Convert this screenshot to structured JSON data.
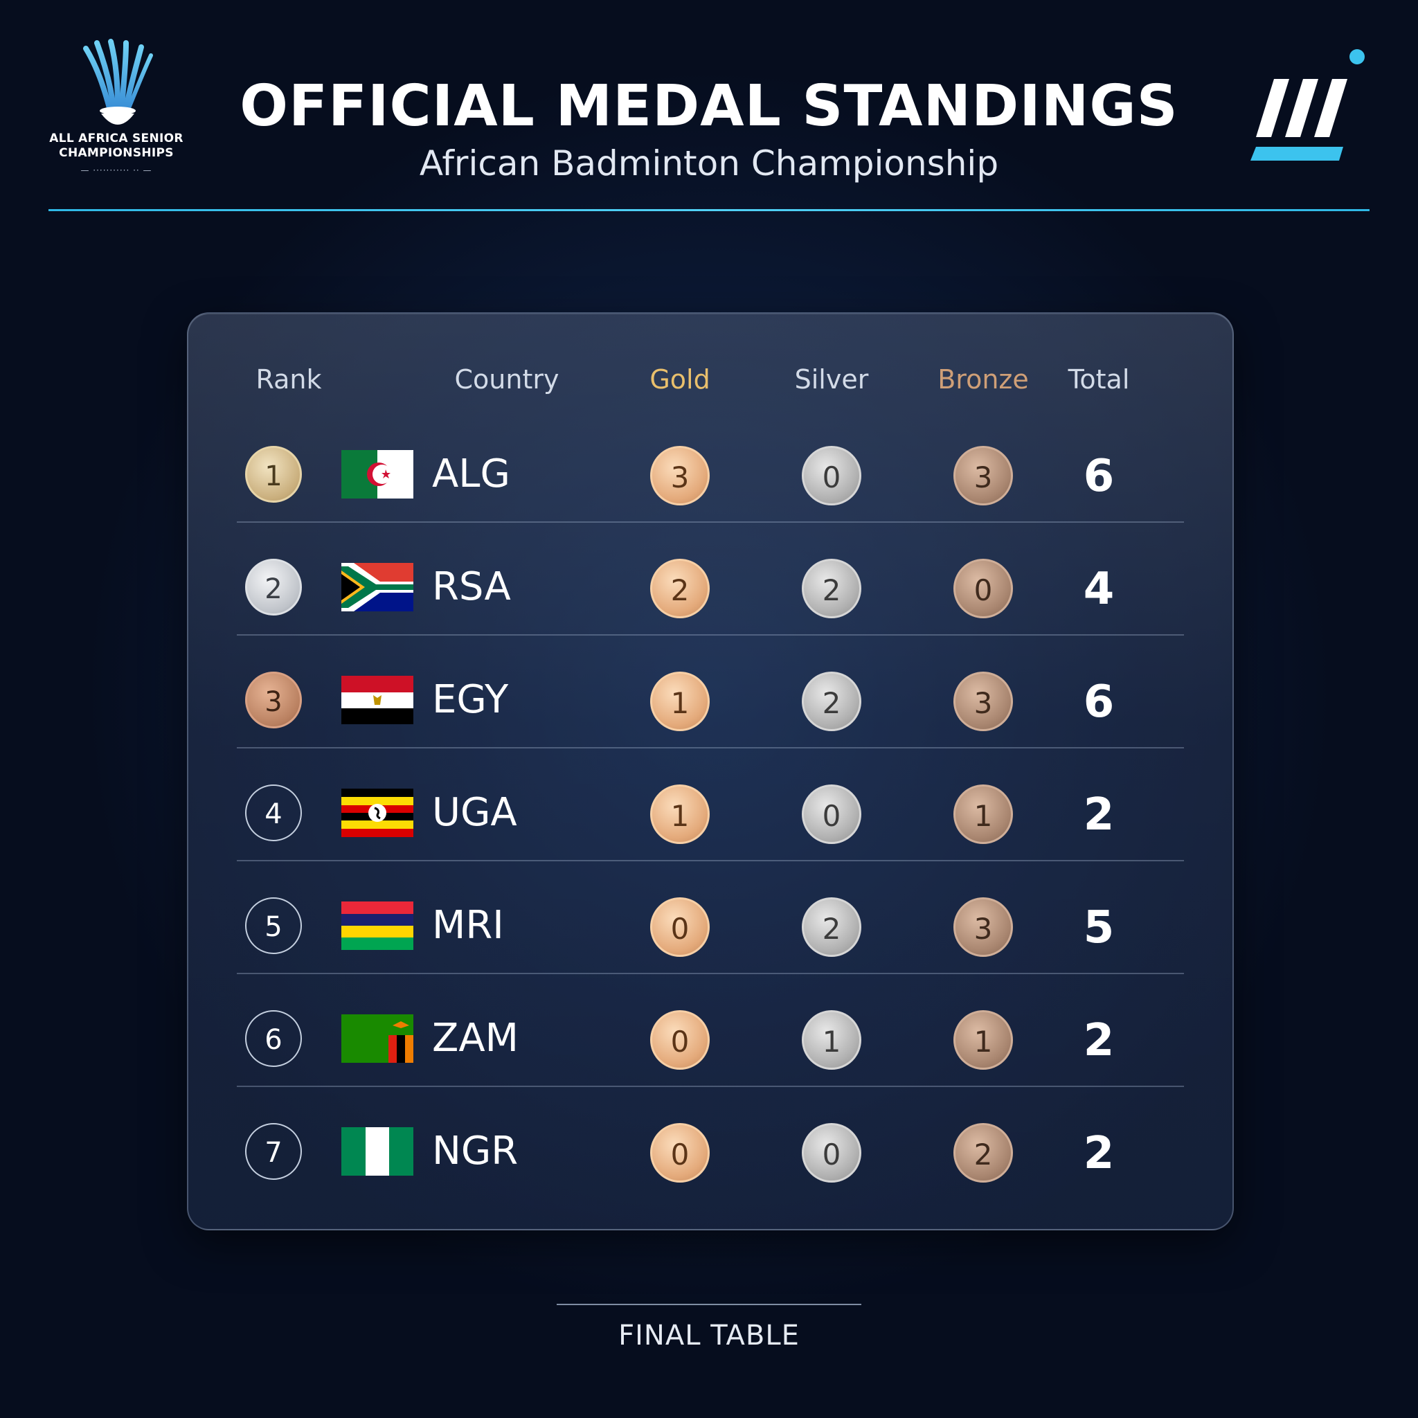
{
  "header": {
    "title": "OFFICIAL MEDAL STANDINGS",
    "subtitle": "African Badminton Championship",
    "left_logo": {
      "icon": "shuttlecock-icon",
      "line1": "ALL AFRICA SENIOR",
      "line2": "CHAMPIONSHIPS",
      "line3": "— ··········· ·· —"
    },
    "right_logo": {
      "icon": "brand-slashes-logo"
    },
    "accent_color": "#2fb8e6"
  },
  "table": {
    "columns": {
      "rank": "Rank",
      "country": "Country",
      "gold": "Gold",
      "silver": "Silver",
      "bronze": "Bronze",
      "total": "Total"
    },
    "rows": [
      {
        "rank": "1",
        "country": "ALG",
        "flag": "algeria-flag",
        "gold": "3",
        "silver": "0",
        "bronze": "3",
        "total": "6"
      },
      {
        "rank": "2",
        "country": "RSA",
        "flag": "south-africa-flag",
        "gold": "2",
        "silver": "2",
        "bronze": "0",
        "total": "4"
      },
      {
        "rank": "3",
        "country": "EGY",
        "flag": "egypt-flag",
        "gold": "1",
        "silver": "2",
        "bronze": "3",
        "total": "6"
      },
      {
        "rank": "4",
        "country": "UGA",
        "flag": "uganda-flag",
        "gold": "1",
        "silver": "0",
        "bronze": "1",
        "total": "2"
      },
      {
        "rank": "5",
        "country": "MRI",
        "flag": "mauritius-flag",
        "gold": "0",
        "silver": "2",
        "bronze": "3",
        "total": "5"
      },
      {
        "rank": "6",
        "country": "ZAM",
        "flag": "zambia-flag",
        "gold": "0",
        "silver": "1",
        "bronze": "1",
        "total": "2"
      },
      {
        "rank": "7",
        "country": "NGR",
        "flag": "nigeria-flag",
        "gold": "0",
        "silver": "0",
        "bronze": "2",
        "total": "2"
      }
    ],
    "colors": {
      "gold": "#e4aa7b",
      "silver": "#b1b1b1",
      "bronze": "#a98670"
    }
  },
  "footer": {
    "label": "FINAL TABLE"
  }
}
